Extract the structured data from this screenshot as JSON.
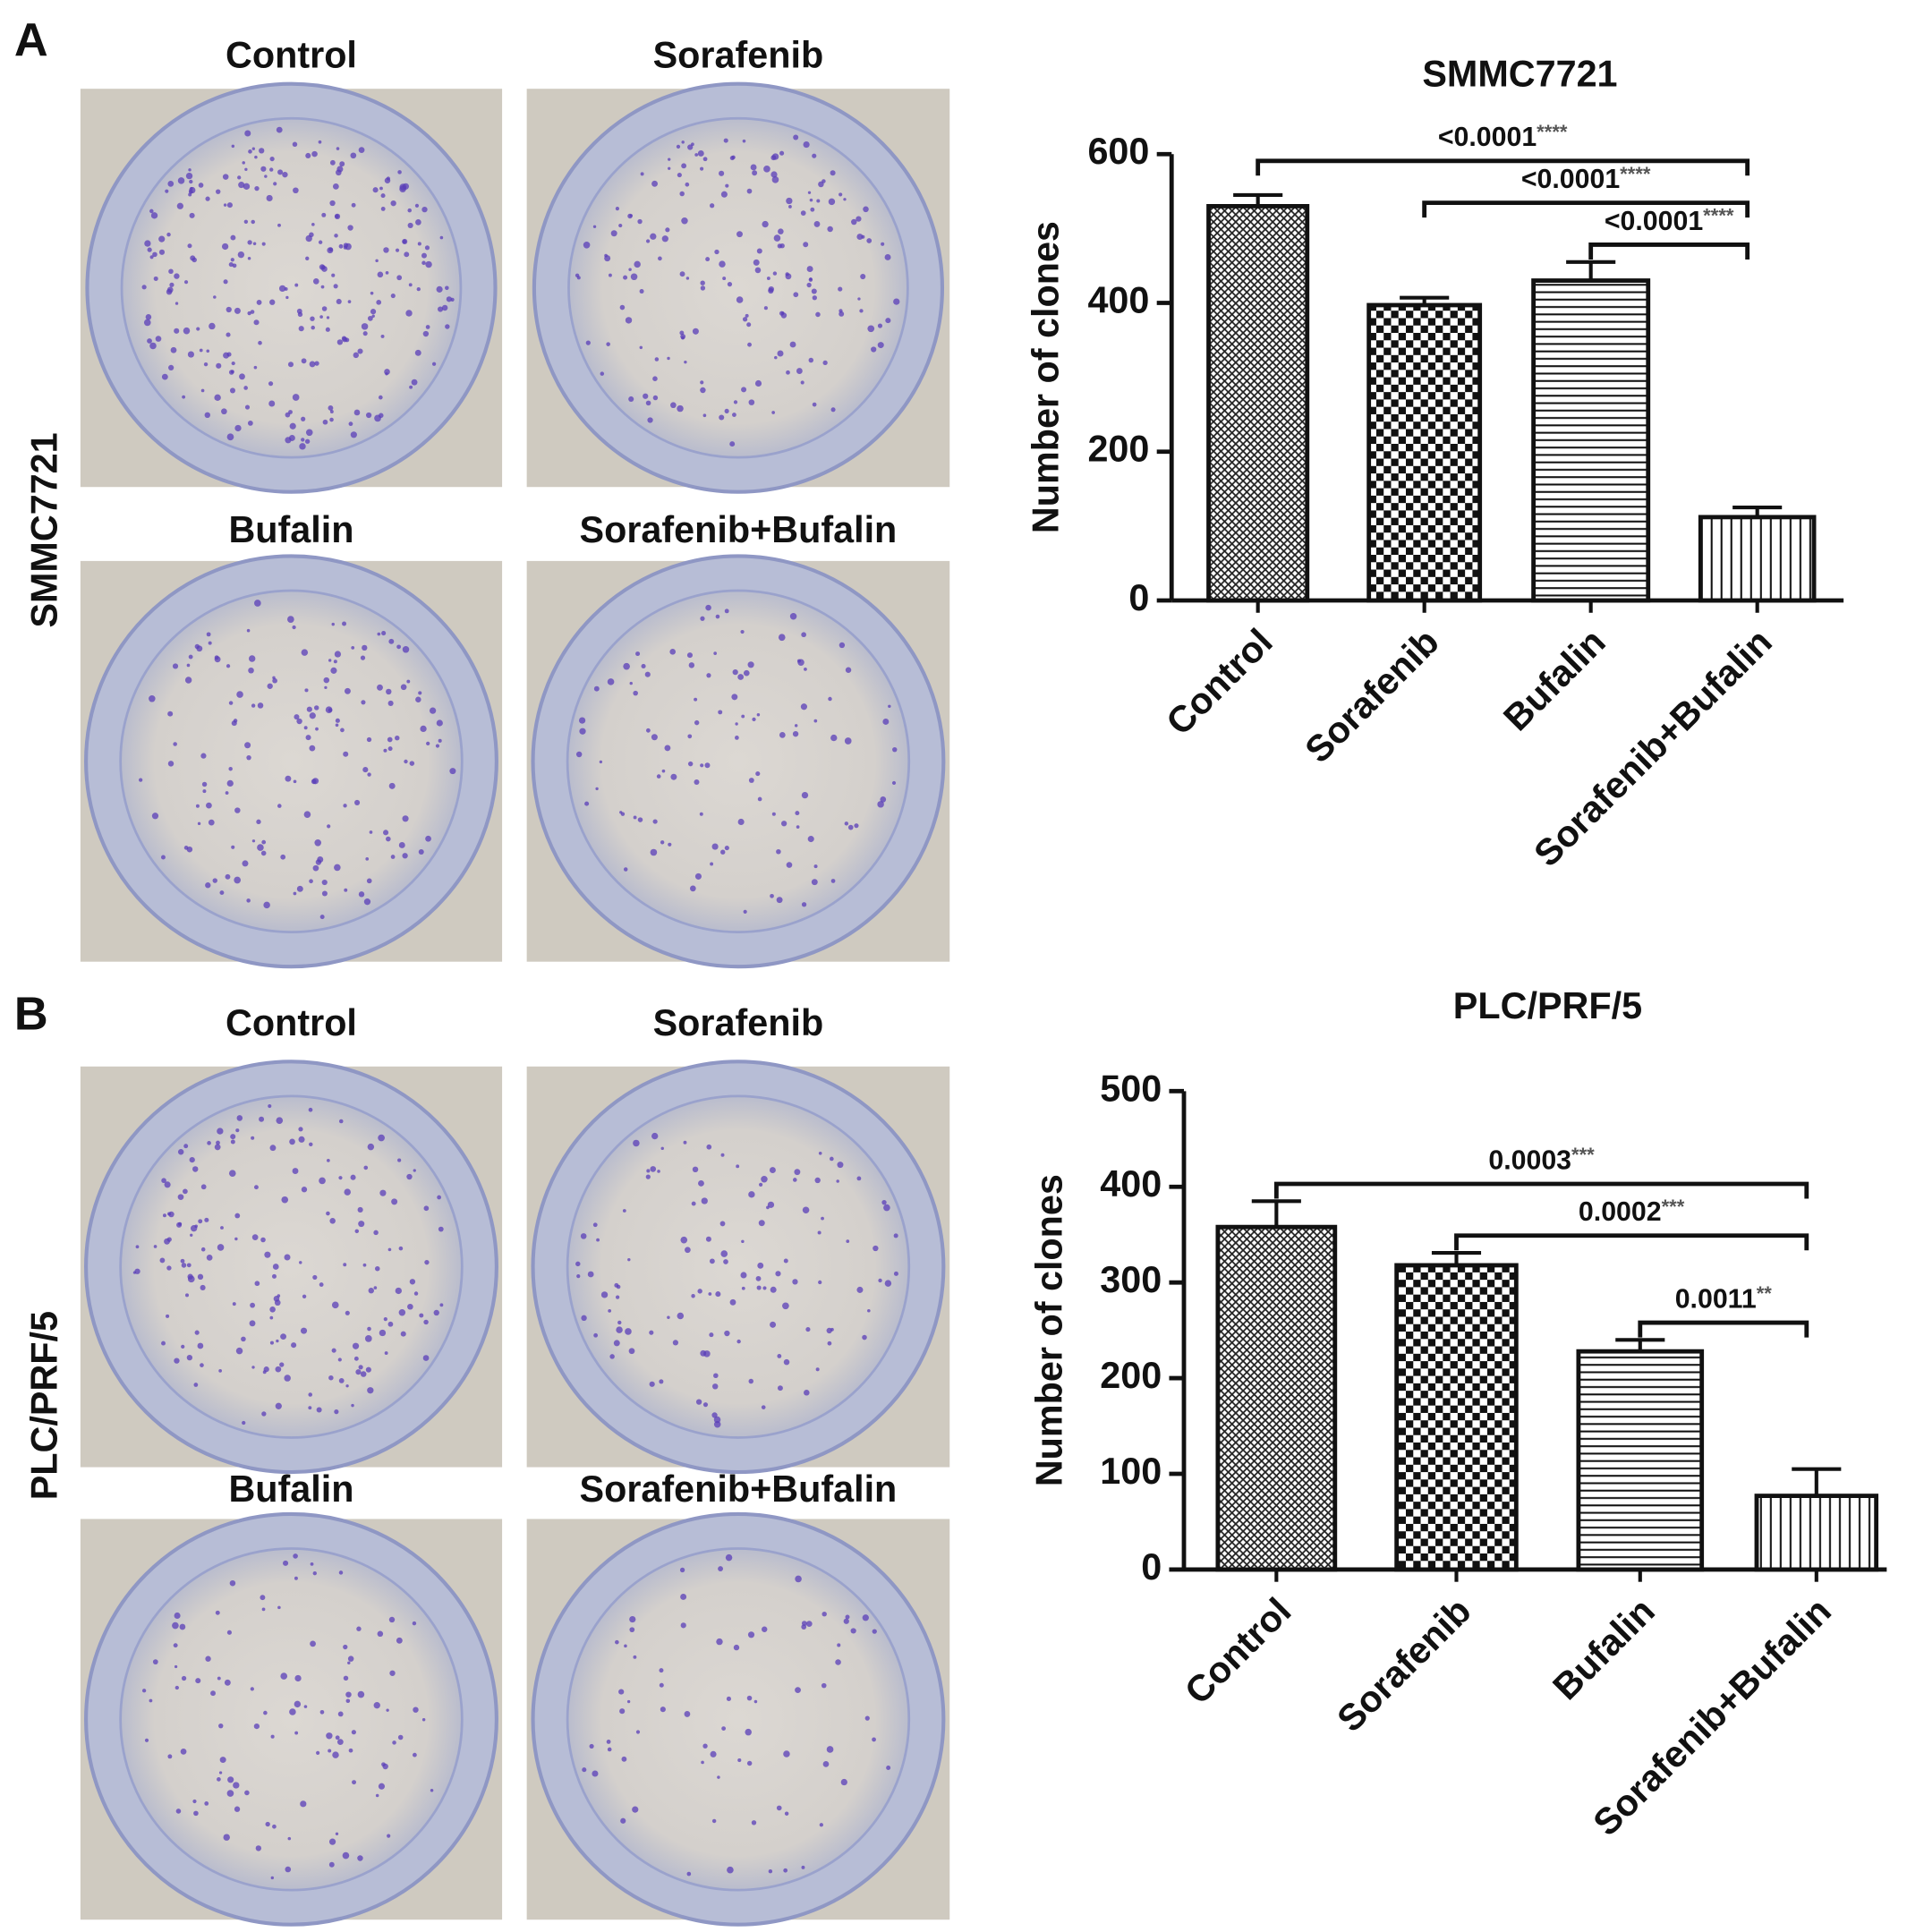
{
  "panels": [
    {
      "label": "A",
      "cell_line": "SMMC7721",
      "photo_labels": [
        "Control",
        "Sorafenib",
        "Bufalin",
        "Sorafenib+Bufalin"
      ]
    },
    {
      "label": "B",
      "cell_line": "PLC/PRF/5",
      "photo_labels": [
        "Control",
        "Sorafenib",
        "Bufalin",
        "Sorafenib+Bufalin"
      ]
    }
  ],
  "chart_data": [
    {
      "type": "bar",
      "title": "SMMC7721",
      "y_label": "Number of clones",
      "categories": [
        "Control",
        "Sorafenib",
        "Bufalin",
        "Sorafenib+Bufalin"
      ],
      "values": [
        530,
        397,
        430,
        112
      ],
      "errors": [
        15,
        10,
        25,
        13
      ],
      "patterns": [
        "crosshatch",
        "checker",
        "horizontal",
        "vertical"
      ],
      "color": "#111111",
      "ylim": [
        0,
        600
      ],
      "yticks": [
        0,
        200,
        400,
        600
      ],
      "comparisons": [
        {
          "between": [
            "Control",
            "Sorafenib+Bufalin"
          ],
          "p": "<0.0001",
          "stars": "****"
        },
        {
          "between": [
            "Sorafenib",
            "Sorafenib+Bufalin"
          ],
          "p": "<0.0001",
          "stars": "****"
        },
        {
          "between": [
            "Bufalin",
            "Sorafenib+Bufalin"
          ],
          "p": "<0.0001",
          "stars": "****"
        }
      ]
    },
    {
      "type": "bar",
      "title": "PLC/PRF/5",
      "y_label": "Number of clones",
      "categories": [
        "Control",
        "Sorafenib",
        "Bufalin",
        "Sorafenib+Bufalin"
      ],
      "values": [
        358,
        318,
        228,
        77
      ],
      "errors": [
        27,
        13,
        12,
        28
      ],
      "patterns": [
        "crosshatch",
        "checker",
        "horizontal",
        "vertical"
      ],
      "color": "#111111",
      "ylim": [
        0,
        500
      ],
      "yticks": [
        0,
        100,
        200,
        300,
        400,
        500
      ],
      "comparisons": [
        {
          "between": [
            "Control",
            "Sorafenib+Bufalin"
          ],
          "p": "0.0003",
          "stars": "***"
        },
        {
          "between": [
            "Sorafenib",
            "Sorafenib+Bufalin"
          ],
          "p": "0.0002",
          "stars": "***"
        },
        {
          "between": [
            "Bufalin",
            "Sorafenib+Bufalin"
          ],
          "p": "0.0011",
          "stars": "**"
        }
      ]
    }
  ]
}
